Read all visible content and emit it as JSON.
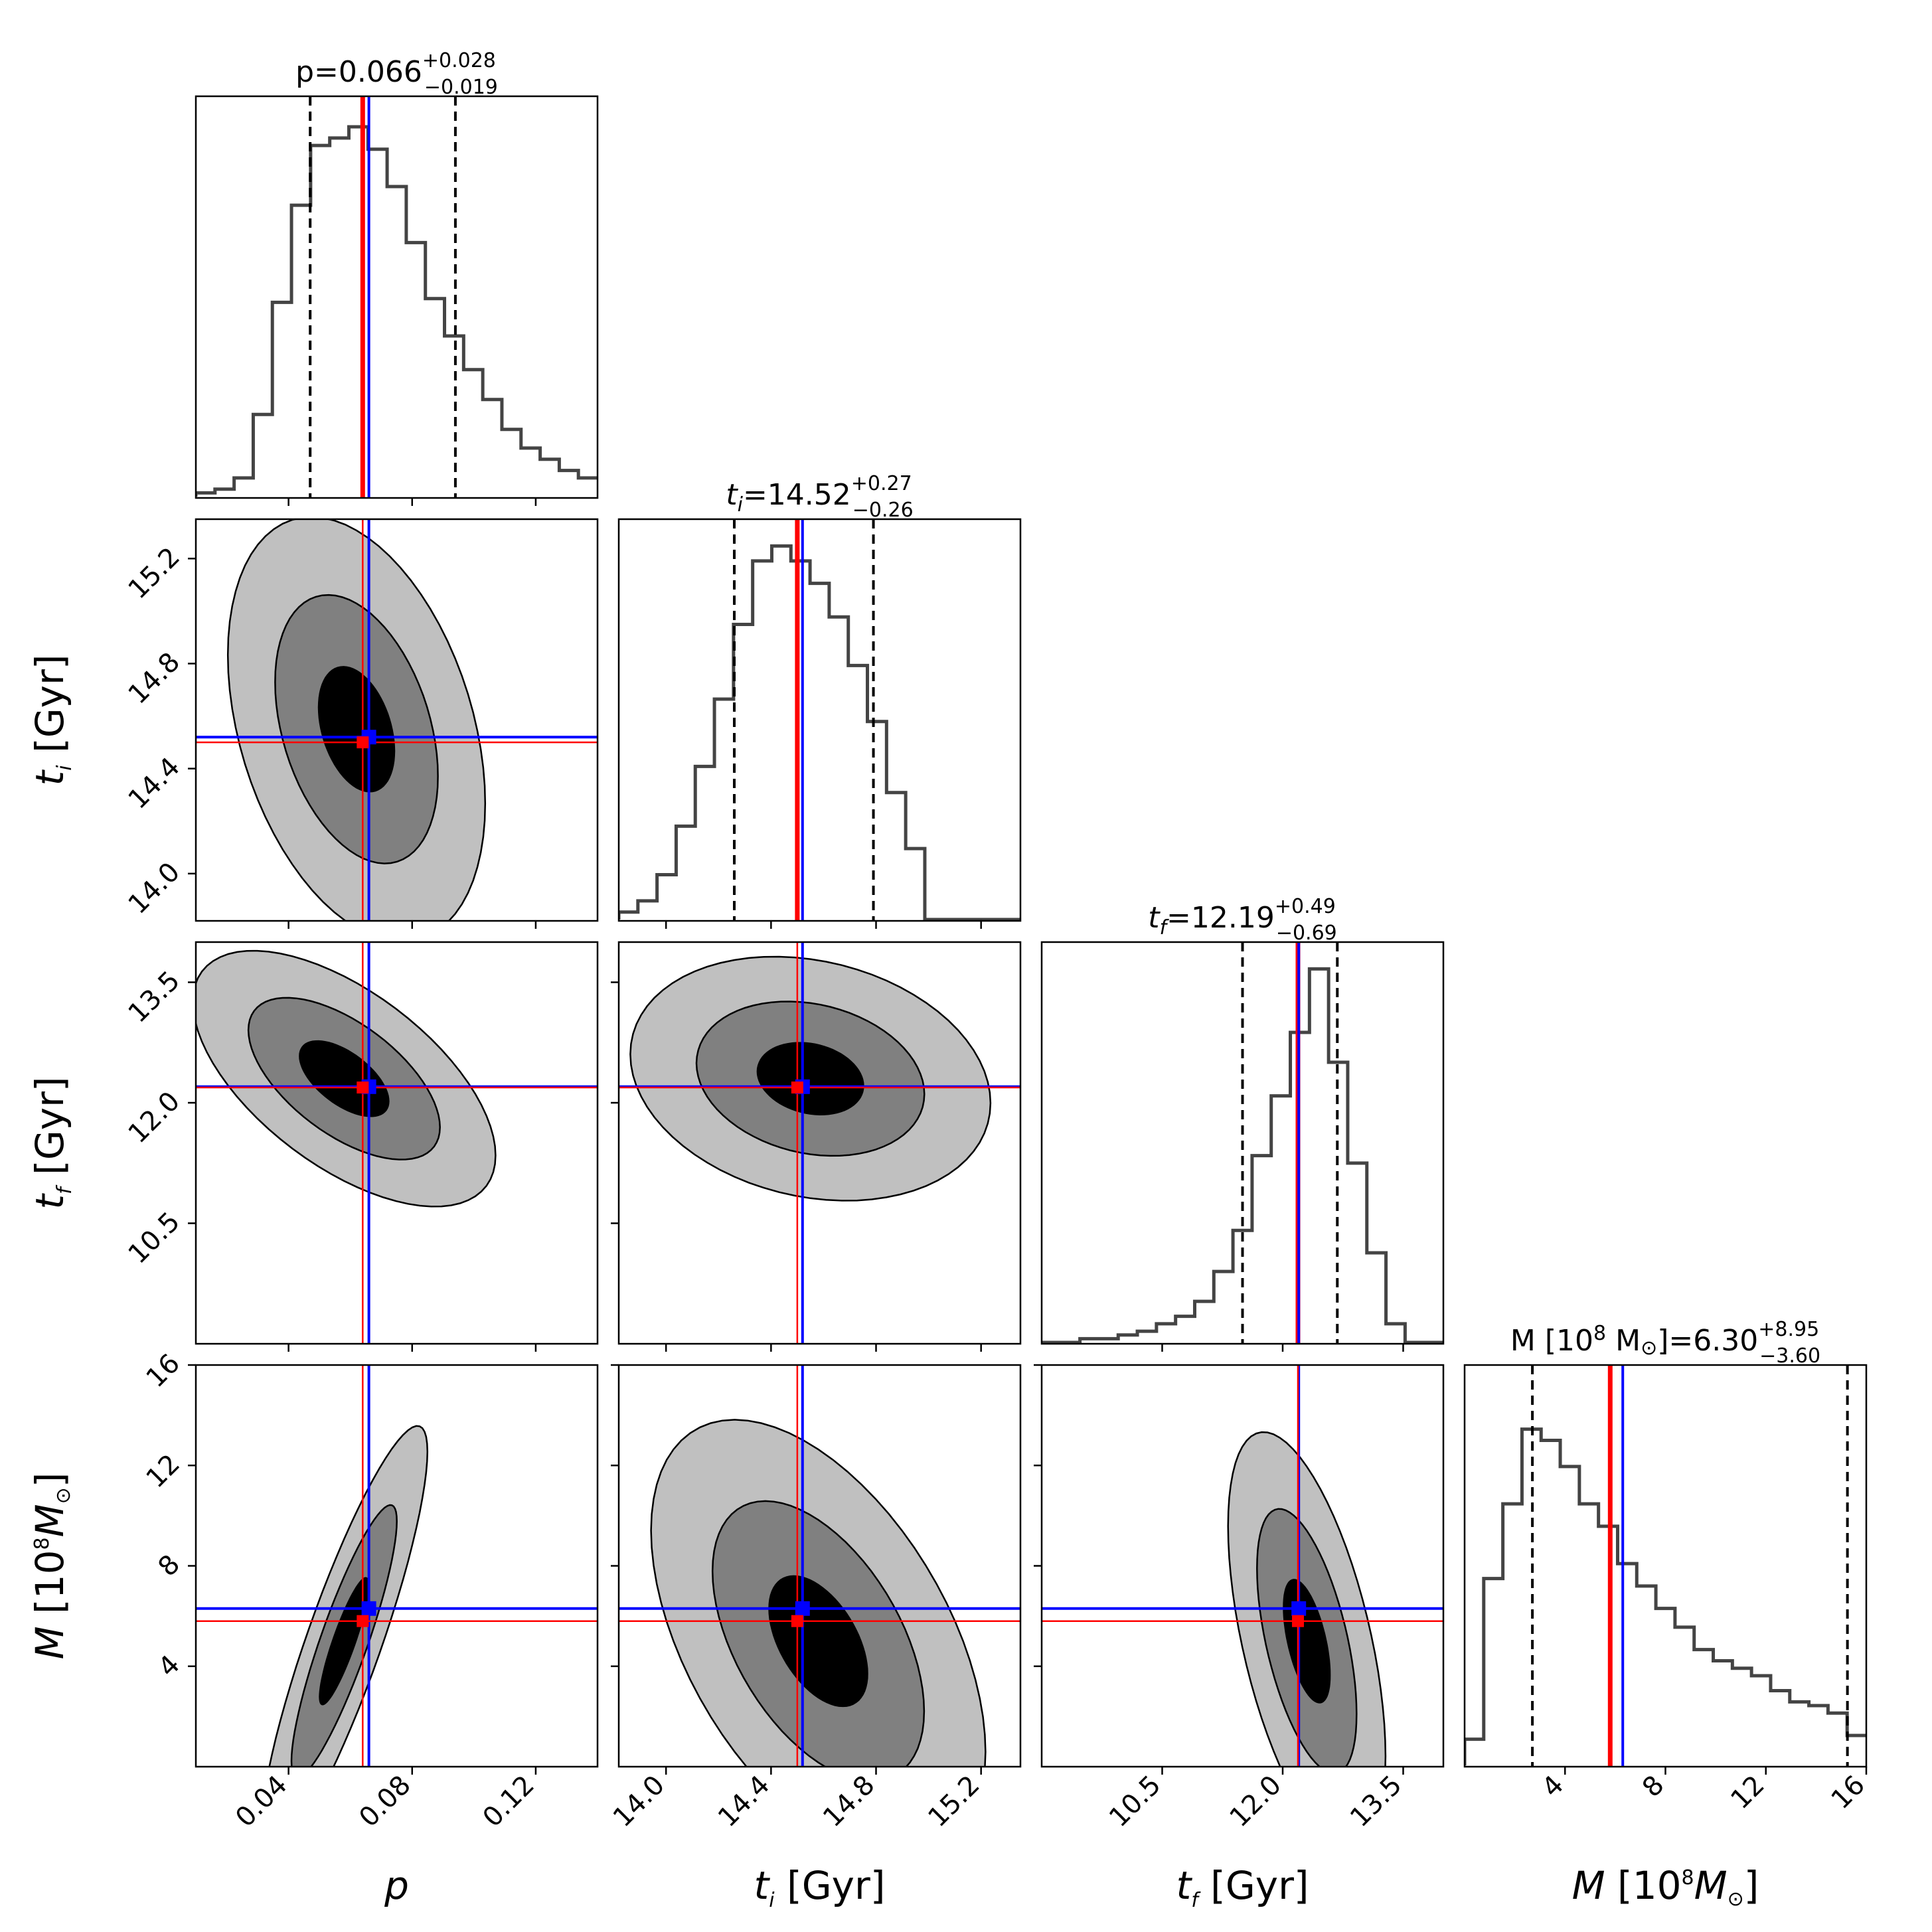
{
  "colors": {
    "hist_line": "#444444",
    "quantile_line": "#000000",
    "truth_red": "#ff0000",
    "estimate_blue": "#0000ff",
    "contour_outer": "#c0c0c0",
    "contour_mid": "#808080",
    "contour_inner": "#000000"
  },
  "chart_data": {
    "type": "corner",
    "parameters": [
      {
        "key": "p",
        "label_text": "p",
        "label_unit": "",
        "range": [
          0.01,
          0.14
        ],
        "ticks": [
          0.04,
          0.08,
          0.12
        ],
        "tick_labels": [
          "0.04",
          "0.08",
          "0.12"
        ],
        "title_prefix": "p=",
        "median": "0.066",
        "err_plus": "+0.028",
        "err_minus": "−0.019",
        "quantiles": [
          0.047,
          0.066,
          0.094
        ],
        "truth": 0.064,
        "estimate": 0.066
      },
      {
        "key": "t_i",
        "label_text": "t",
        "label_sub": "i",
        "label_unit": " [Gyr]",
        "range": [
          13.82,
          15.35
        ],
        "ticks": [
          14.0,
          14.4,
          14.8,
          15.2
        ],
        "tick_labels": [
          "14.0",
          "14.4",
          "14.8",
          "15.2"
        ],
        "title_prefix": "=",
        "median": "14.52",
        "err_plus": "+0.27",
        "err_minus": "−0.26",
        "quantiles": [
          14.26,
          14.52,
          14.79
        ],
        "truth": 14.5,
        "estimate": 14.52
      },
      {
        "key": "t_f",
        "label_text": "t",
        "label_sub": "f",
        "label_unit": " [Gyr]",
        "range": [
          9.0,
          14.0
        ],
        "ticks": [
          10.5,
          12.0,
          13.5
        ],
        "tick_labels": [
          "10.5",
          "12.0",
          "13.5"
        ],
        "title_prefix": "=",
        "median": "12.19",
        "err_plus": "+0.49",
        "err_minus": "−0.69",
        "quantiles": [
          11.5,
          12.19,
          12.68
        ],
        "truth": 12.19,
        "estimate": 12.2
      },
      {
        "key": "M",
        "label_text": "M [10",
        "label_sup": "8",
        "label_tail": "M",
        "label_sun": "⊙",
        "label_close": "]",
        "range": [
          0.0,
          16.0
        ],
        "ticks": [
          4,
          8,
          12,
          16
        ],
        "tick_labels": [
          "4",
          "8",
          "12",
          "16"
        ],
        "title_prefix": "M [10",
        "title_sup": "8",
        "title_mid": " M",
        "title_sun": "⊙",
        "title_close": "]=",
        "median": "6.30",
        "err_plus": "+8.95",
        "err_minus": "−3.60",
        "quantiles": [
          2.7,
          6.3,
          15.25
        ],
        "truth": 5.8,
        "estimate": 6.3
      }
    ],
    "histograms": {
      "p": [
        0.01,
        0.02,
        0.05,
        0.22,
        0.52,
        0.78,
        0.94,
        0.96,
        0.99,
        0.93,
        0.83,
        0.68,
        0.53,
        0.43,
        0.34,
        0.26,
        0.18,
        0.13,
        0.1,
        0.07,
        0.05
      ],
      "t_i": [
        0.02,
        0.05,
        0.12,
        0.25,
        0.41,
        0.59,
        0.79,
        0.96,
        1.0,
        0.96,
        0.9,
        0.81,
        0.68,
        0.53,
        0.34,
        0.19,
        0.0,
        0.0,
        0.0,
        0.0,
        0.0
      ],
      "t_f": [
        0.0,
        0.0,
        0.01,
        0.01,
        0.02,
        0.03,
        0.05,
        0.07,
        0.11,
        0.19,
        0.3,
        0.5,
        0.66,
        0.83,
        1.0,
        0.75,
        0.48,
        0.24,
        0.05,
        0.0,
        0.0
      ],
      "M": [
        0.07,
        0.5,
        0.7,
        0.9,
        0.87,
        0.8,
        0.7,
        0.64,
        0.54,
        0.48,
        0.42,
        0.37,
        0.31,
        0.28,
        0.26,
        0.24,
        0.2,
        0.17,
        0.16,
        0.14,
        0.08
      ]
    },
    "contours_2d": [
      {
        "x": "p",
        "y": "t_i",
        "center": [
          0.062,
          14.55
        ],
        "sigma": [
          0.017,
          0.33
        ],
        "rho": -0.35
      },
      {
        "x": "p",
        "y": "t_f",
        "center": [
          0.058,
          12.3
        ],
        "sigma": [
          0.02,
          0.65
        ],
        "rho": -0.6
      },
      {
        "x": "t_i",
        "y": "t_f",
        "center": [
          14.55,
          12.3
        ],
        "sigma": [
          0.28,
          0.62
        ],
        "rho": -0.2
      },
      {
        "x": "p",
        "y": "M",
        "center": [
          0.058,
          5.0
        ],
        "sigma": [
          0.011,
          3.5
        ],
        "rho": 0.88
      },
      {
        "x": "t_i",
        "y": "M",
        "center": [
          14.58,
          5.0
        ],
        "sigma": [
          0.26,
          3.6
        ],
        "rho": -0.5
      },
      {
        "x": "t_f",
        "y": "M",
        "center": [
          12.3,
          5.0
        ],
        "sigma": [
          0.4,
          3.4
        ],
        "rho": -0.55
      }
    ],
    "contour_levels": [
      "outer",
      "mid",
      "inner"
    ]
  }
}
